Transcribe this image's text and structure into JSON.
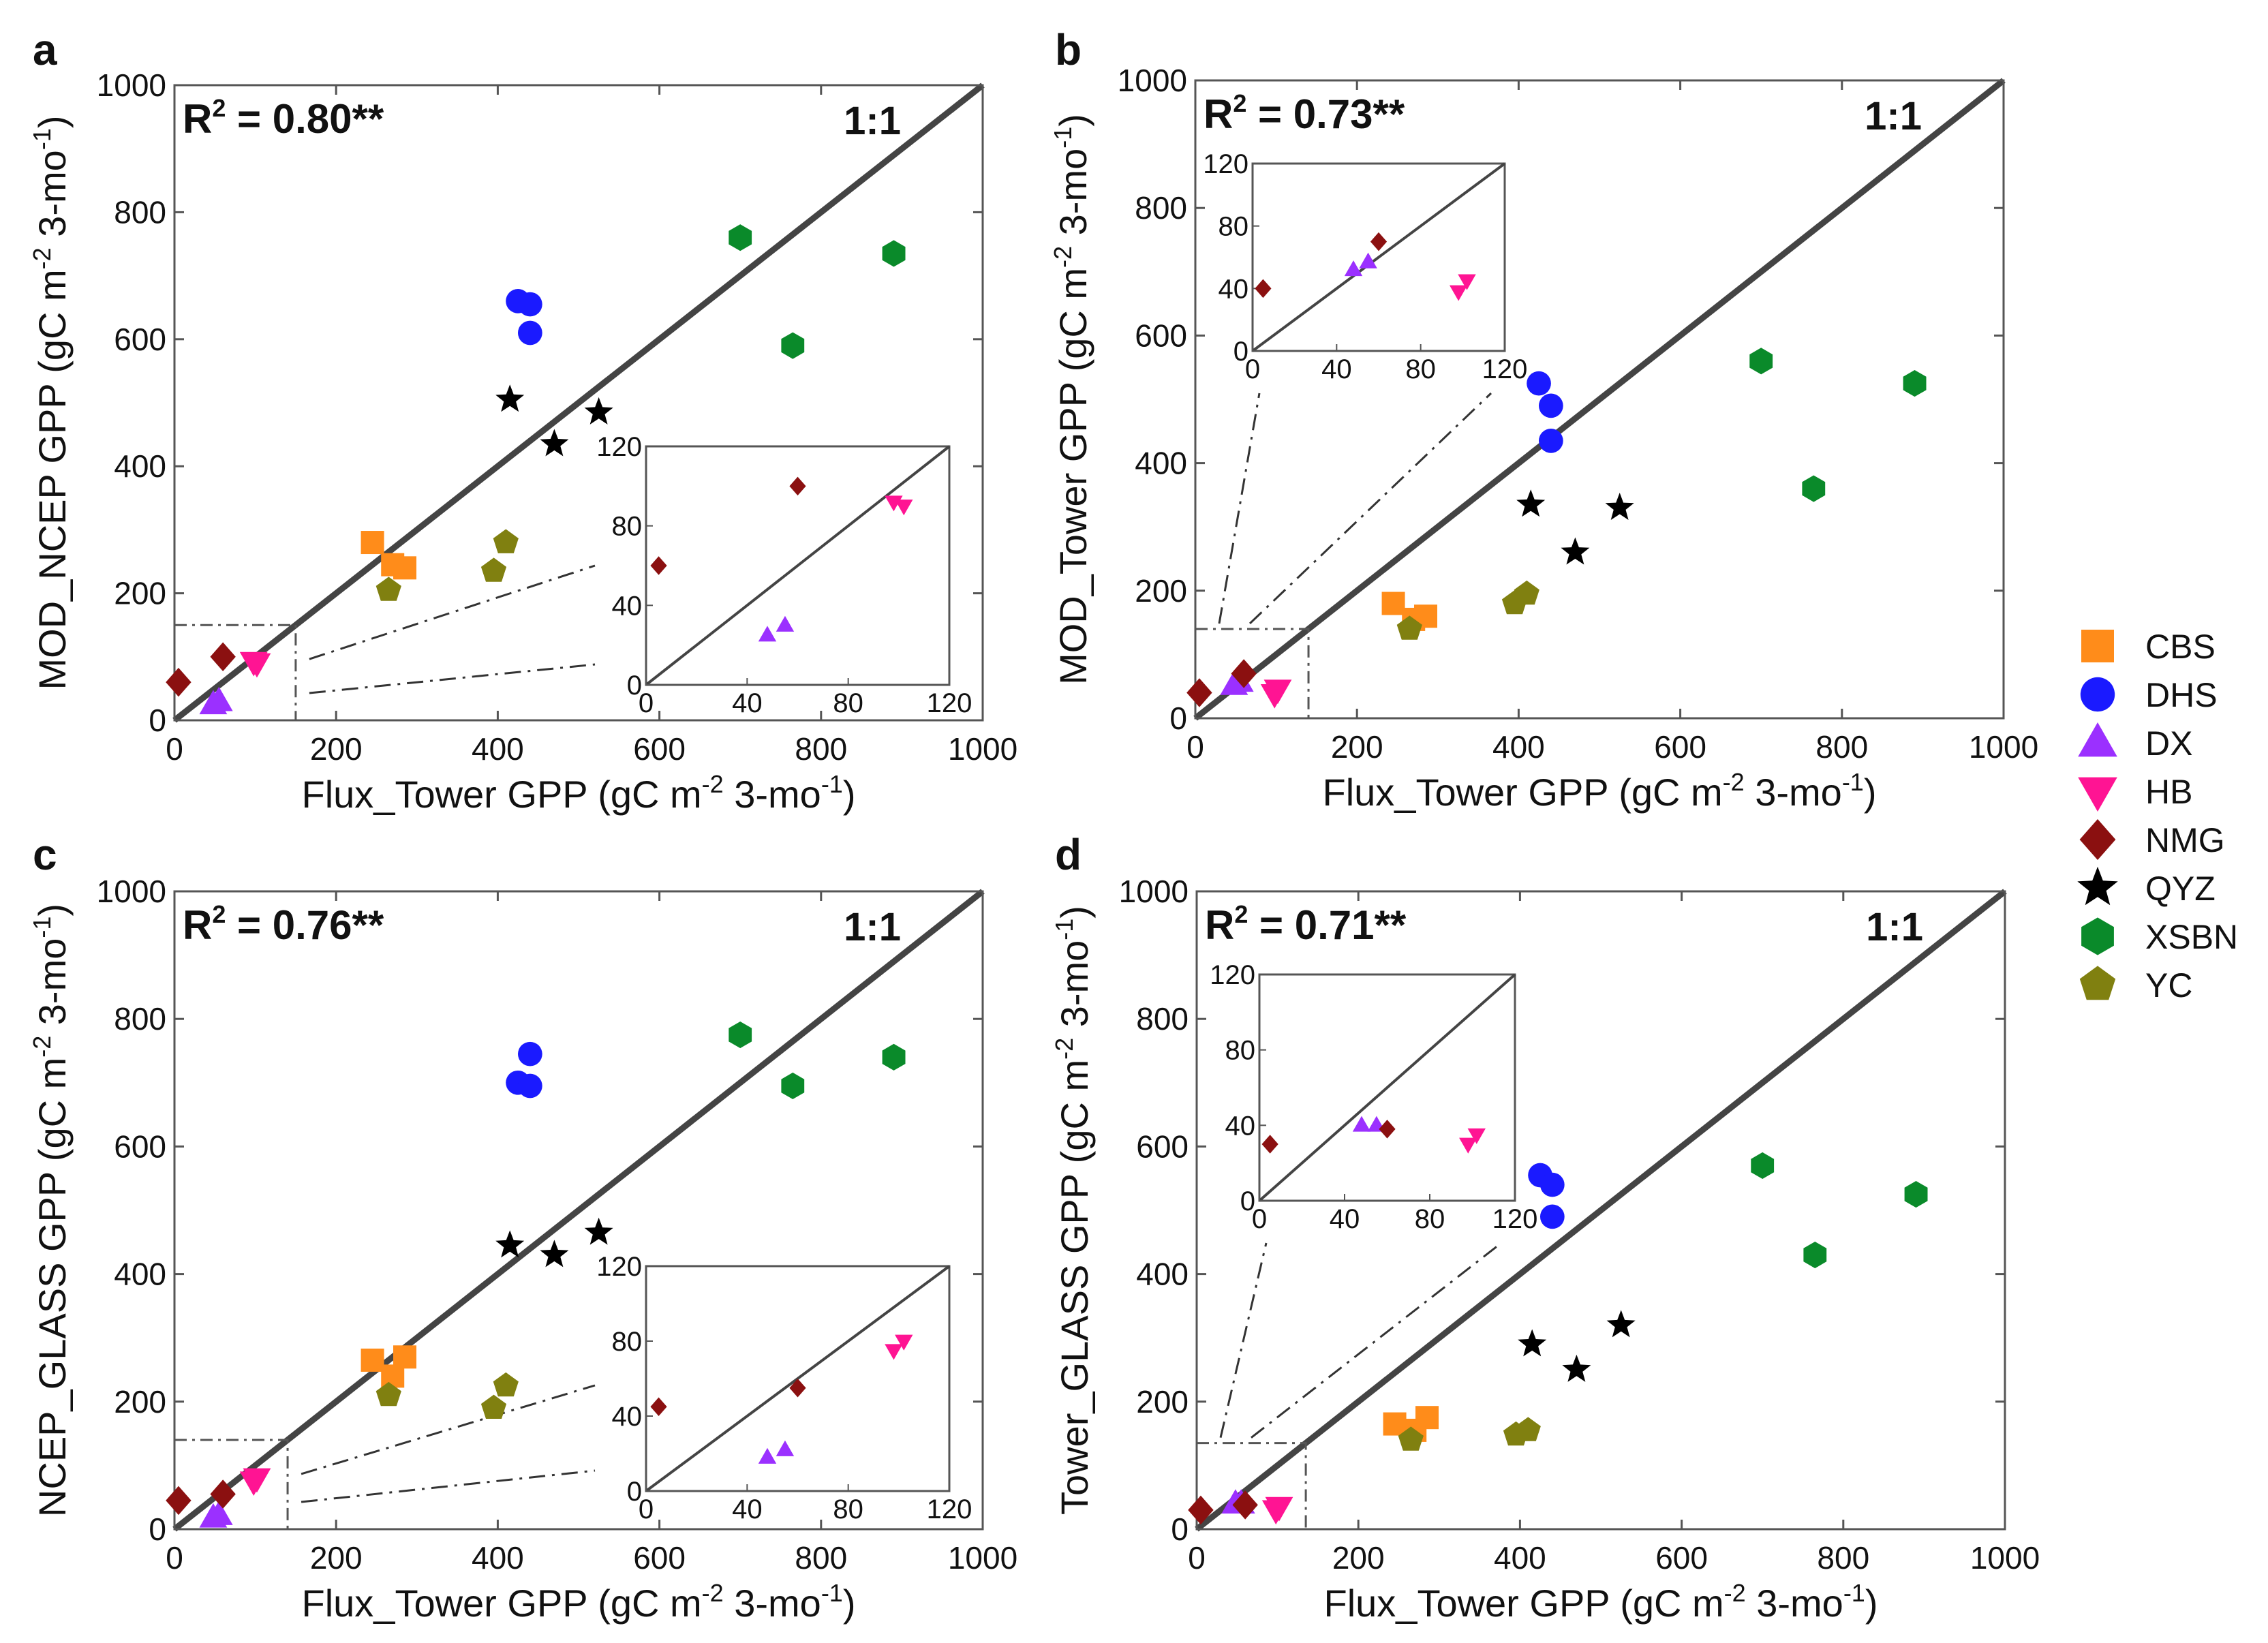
{
  "chart_data": [
    {
      "type": "scatter",
      "panel_label": "a",
      "ylabel": "MOD_NCEP GPP (gC m-2 3-mo-1)",
      "ylabel_parts": {
        "base": "MOD_NCEP GPP (gC m",
        "exp1": "-2",
        "mid": " 3-mo",
        "exp2": "-1",
        "end": ")"
      },
      "xlabel": "Flux_Tower GPP (gC m-2 3-mo-1)",
      "xlabel_parts": {
        "base": "Flux_Tower GPP (gC m",
        "exp1": "-2",
        "mid": " 3-mo",
        "exp2": "-1",
        "end": ")"
      },
      "r2_text": "R² = 0.80**",
      "r2": {
        "prefix": "R",
        "sup": "2",
        "value": " = 0.80**"
      },
      "line_label": "1:1",
      "xlim": [
        0,
        1000
      ],
      "ylim": [
        0,
        1000
      ],
      "xticks": [
        "0",
        "200",
        "400",
        "600",
        "800",
        "1000"
      ],
      "yticks": [
        "0",
        "200",
        "400",
        "600",
        "800",
        "1000"
      ],
      "inset": {
        "xlim": [
          0,
          120
        ],
        "ylim": [
          0,
          120
        ],
        "xticks": [
          "0",
          "40",
          "80",
          "120"
        ],
        "yticks": [
          "0",
          "40",
          "80",
          "120"
        ]
      },
      "series": [
        {
          "name": "CBS",
          "points": [
            [
              245,
              280
            ],
            [
              270,
              245
            ],
            [
              285,
              240
            ]
          ]
        },
        {
          "name": "DHS",
          "points": [
            [
              425,
              660
            ],
            [
              440,
              655
            ],
            [
              440,
              610
            ]
          ]
        },
        {
          "name": "DX",
          "points": [
            [
              48,
              25
            ],
            [
              55,
              30
            ]
          ]
        },
        {
          "name": "HB",
          "points": [
            [
              98,
              92
            ],
            [
              102,
              90
            ]
          ]
        },
        {
          "name": "NMG",
          "points": [
            [
              5,
              60
            ],
            [
              60,
              100
            ]
          ]
        },
        {
          "name": "QYZ",
          "points": [
            [
              415,
              505
            ],
            [
              470,
              435
            ],
            [
              525,
              485
            ]
          ]
        },
        {
          "name": "XSBN",
          "points": [
            [
              700,
              760
            ],
            [
              765,
              590
            ],
            [
              890,
              735
            ]
          ]
        },
        {
          "name": "YC",
          "points": [
            [
              265,
              205
            ],
            [
              395,
              235
            ],
            [
              410,
              280
            ]
          ]
        }
      ]
    },
    {
      "type": "scatter",
      "panel_label": "b",
      "ylabel": "MOD_Tower GPP (gC m-2 3-mo-1)",
      "ylabel_parts": {
        "base": "MOD_Tower GPP (gC m",
        "exp1": "-2",
        "mid": " 3-mo",
        "exp2": "-1",
        "end": ")"
      },
      "xlabel": "Flux_Tower GPP (gC m-2 3-mo-1)",
      "xlabel_parts": {
        "base": "Flux_Tower GPP (gC m",
        "exp1": "-2",
        "mid": " 3-mo",
        "exp2": "-1",
        "end": ")"
      },
      "r2_text": "R² = 0.73**",
      "r2": {
        "prefix": "R",
        "sup": "2",
        "value": " = 0.73**"
      },
      "line_label": "1:1",
      "xlim": [
        0,
        1000
      ],
      "ylim": [
        0,
        1000
      ],
      "xticks": [
        "0",
        "200",
        "400",
        "600",
        "800",
        "1000"
      ],
      "yticks": [
        "0",
        "200",
        "400",
        "600",
        "800",
        "1000"
      ],
      "inset": {
        "xlim": [
          0,
          120
        ],
        "ylim": [
          0,
          120
        ],
        "xticks": [
          "0",
          "40",
          "80",
          "120"
        ],
        "yticks": [
          "0",
          "40",
          "80",
          "120"
        ]
      },
      "series": [
        {
          "name": "CBS",
          "points": [
            [
              245,
              180
            ],
            [
              270,
              155
            ],
            [
              285,
              160
            ]
          ]
        },
        {
          "name": "DHS",
          "points": [
            [
              425,
              525
            ],
            [
              440,
              490
            ],
            [
              440,
              435
            ]
          ]
        },
        {
          "name": "DX",
          "points": [
            [
              48,
              52
            ],
            [
              55,
              57
            ]
          ]
        },
        {
          "name": "HB",
          "points": [
            [
              98,
              38
            ],
            [
              102,
              45
            ]
          ]
        },
        {
          "name": "NMG",
          "points": [
            [
              5,
              40
            ],
            [
              60,
              70
            ]
          ]
        },
        {
          "name": "QYZ",
          "points": [
            [
              415,
              335
            ],
            [
              470,
              260
            ],
            [
              525,
              330
            ]
          ]
        },
        {
          "name": "XSBN",
          "points": [
            [
              700,
              560
            ],
            [
              765,
              360
            ],
            [
              890,
              525
            ]
          ]
        },
        {
          "name": "YC",
          "points": [
            [
              265,
              140
            ],
            [
              395,
              180
            ],
            [
              410,
              195
            ]
          ]
        }
      ]
    },
    {
      "type": "scatter",
      "panel_label": "c",
      "ylabel": "NCEP_GLASS GPP (gC m-2 3-mo-1)",
      "ylabel_parts": {
        "base": "NCEP_GLASS GPP (gC m",
        "exp1": "-2",
        "mid": " 3-mo",
        "exp2": "-1",
        "end": ")"
      },
      "xlabel": "Flux_Tower GPP (gC m-2 3-mo-1)",
      "xlabel_parts": {
        "base": "Flux_Tower GPP (gC m",
        "exp1": "-2",
        "mid": " 3-mo",
        "exp2": "-1",
        "end": ")"
      },
      "r2_text": "R² = 0.76**",
      "r2": {
        "prefix": "R",
        "sup": "2",
        "value": " = 0.76**"
      },
      "line_label": "1:1",
      "xlim": [
        0,
        1000
      ],
      "ylim": [
        0,
        1000
      ],
      "xticks": [
        "0",
        "200",
        "400",
        "600",
        "800",
        "1000"
      ],
      "yticks": [
        "0",
        "200",
        "400",
        "600",
        "800",
        "1000"
      ],
      "inset": {
        "xlim": [
          0,
          120
        ],
        "ylim": [
          0,
          120
        ],
        "xticks": [
          "0",
          "40",
          "80",
          "120"
        ],
        "yticks": [
          "0",
          "40",
          "80",
          "120"
        ]
      },
      "series": [
        {
          "name": "CBS",
          "points": [
            [
              245,
              265
            ],
            [
              270,
              240
            ],
            [
              285,
              270
            ]
          ]
        },
        {
          "name": "DHS",
          "points": [
            [
              425,
              700
            ],
            [
              440,
              695
            ],
            [
              440,
              745
            ]
          ]
        },
        {
          "name": "DX",
          "points": [
            [
              48,
              18
            ],
            [
              55,
              22
            ]
          ]
        },
        {
          "name": "HB",
          "points": [
            [
              98,
              75
            ],
            [
              102,
              80
            ]
          ]
        },
        {
          "name": "NMG",
          "points": [
            [
              5,
              45
            ],
            [
              60,
              55
            ]
          ]
        },
        {
          "name": "QYZ",
          "points": [
            [
              415,
              445
            ],
            [
              470,
              430
            ],
            [
              525,
              465
            ]
          ]
        },
        {
          "name": "XSBN",
          "points": [
            [
              700,
              775
            ],
            [
              765,
              695
            ],
            [
              890,
              740
            ]
          ]
        },
        {
          "name": "YC",
          "points": [
            [
              265,
              210
            ],
            [
              395,
              190
            ],
            [
              410,
              225
            ]
          ]
        }
      ]
    },
    {
      "type": "scatter",
      "panel_label": "d",
      "ylabel": "Tower_GLASS GPP (gC m-2 3-mo-1)",
      "ylabel_parts": {
        "base": "Tower_GLASS GPP (gC m",
        "exp1": "-2",
        "mid": " 3-mo",
        "exp2": "-1",
        "end": ")"
      },
      "xlabel": "Flux_Tower GPP (gC m-2 3-mo-1)",
      "xlabel_parts": {
        "base": "Flux_Tower GPP (gC m",
        "exp1": "-2",
        "mid": " 3-mo",
        "exp2": "-1",
        "end": ")"
      },
      "r2_text": "R² = 0.71**",
      "r2": {
        "prefix": "R",
        "sup": "2",
        "value": " = 0.71**"
      },
      "line_label": "1:1",
      "xlim": [
        0,
        1000
      ],
      "ylim": [
        0,
        1000
      ],
      "xticks": [
        "0",
        "200",
        "400",
        "600",
        "800",
        "1000"
      ],
      "yticks": [
        "0",
        "200",
        "400",
        "600",
        "800",
        "1000"
      ],
      "inset": {
        "xlim": [
          0,
          120
        ],
        "ylim": [
          0,
          120
        ],
        "xticks": [
          "0",
          "40",
          "80",
          "120"
        ],
        "yticks": [
          "0",
          "40",
          "80",
          "120"
        ]
      },
      "series": [
        {
          "name": "CBS",
          "points": [
            [
              245,
              165
            ],
            [
              270,
              155
            ],
            [
              285,
              175
            ]
          ]
        },
        {
          "name": "DHS",
          "points": [
            [
              425,
              555
            ],
            [
              440,
              540
            ],
            [
              440,
              490
            ]
          ]
        },
        {
          "name": "DX",
          "points": [
            [
              48,
              40
            ],
            [
              55,
              40
            ]
          ]
        },
        {
          "name": "HB",
          "points": [
            [
              98,
              30
            ],
            [
              102,
              35
            ]
          ]
        },
        {
          "name": "NMG",
          "points": [
            [
              5,
              30
            ],
            [
              60,
              38
            ]
          ]
        },
        {
          "name": "QYZ",
          "points": [
            [
              415,
              290
            ],
            [
              470,
              250
            ],
            [
              525,
              320
            ]
          ]
        },
        {
          "name": "XSBN",
          "points": [
            [
              700,
              570
            ],
            [
              765,
              430
            ],
            [
              890,
              525
            ]
          ]
        },
        {
          "name": "YC",
          "points": [
            [
              265,
              140
            ],
            [
              395,
              148
            ],
            [
              410,
              155
            ]
          ]
        }
      ]
    }
  ],
  "legend": {
    "placement": "right",
    "items": [
      {
        "name": "CBS",
        "marker": "square-icon",
        "color": "#ff8c1a"
      },
      {
        "name": "DHS",
        "marker": "circle-icon",
        "color": "#1a1aff"
      },
      {
        "name": "DX",
        "marker": "triangle-up-icon",
        "color": "#9b30ff"
      },
      {
        "name": "HB",
        "marker": "triangle-down-icon",
        "color": "#ff1493"
      },
      {
        "name": "NMG",
        "marker": "diamond-icon",
        "color": "#8b1010"
      },
      {
        "name": "QYZ",
        "marker": "star-icon",
        "color": "#000000"
      },
      {
        "name": "XSBN",
        "marker": "hexagon-icon",
        "color": "#0a8a2a"
      },
      {
        "name": "YC",
        "marker": "pentagon-icon",
        "color": "#808010"
      }
    ]
  }
}
